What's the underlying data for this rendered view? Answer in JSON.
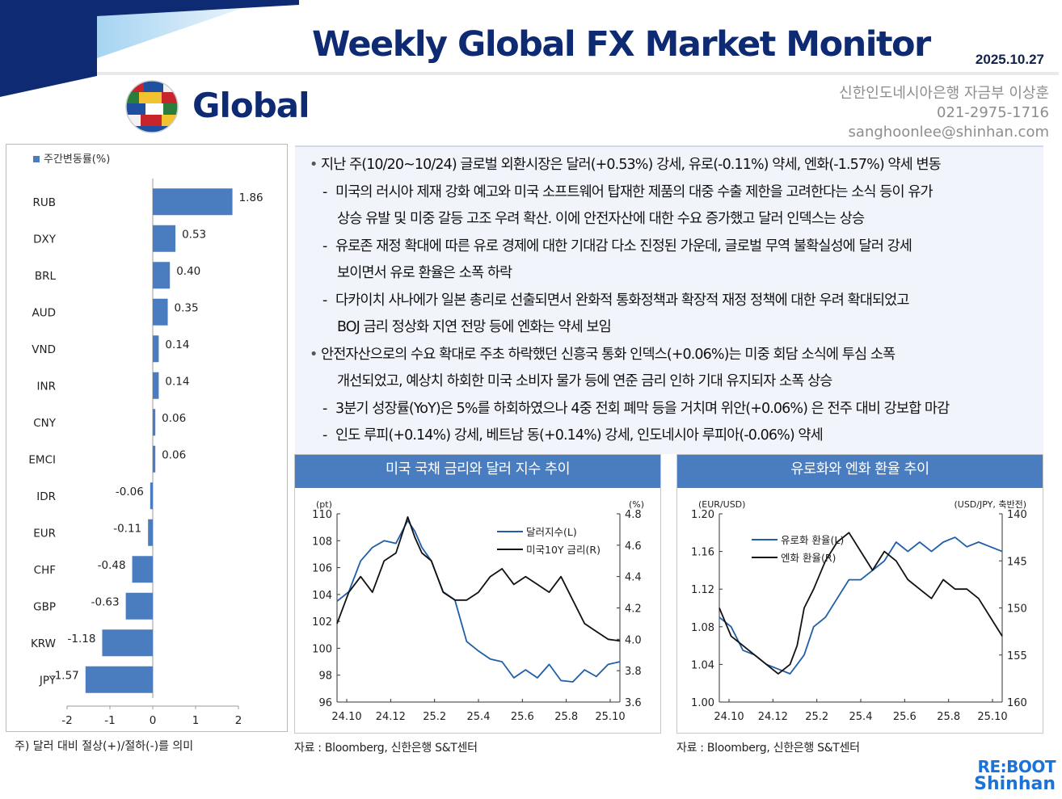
{
  "header": {
    "title": "Weekly Global FX Market Monitor",
    "date": "2025.10.27",
    "section": "Global"
  },
  "author": {
    "dept": "신한인도네시아은행 자금부 이상훈",
    "phone": "021-2975-1716",
    "email": "sanghoonlee@shinhan.com"
  },
  "summary": [
    {
      "kind": "bullet",
      "text": "지난 주(10/20~10/24) 글로벌 외환시장은 달러(+0.53%) 강세, 유로(-0.11%) 약세, 엔화(-1.57%) 약세 변동"
    },
    {
      "kind": "sub",
      "text": "미국의 러시아 제재 강화 예고와 미국 소프트웨어 탑재한 제품의 대중 수출 제한을 고려한다는 소식 등이 유가"
    },
    {
      "kind": "cont",
      "text": "상승 유발 및 미중 갈등 고조 우려 확산. 이에 안전자산에 대한 수요 증가했고 달러 인덱스는 상승"
    },
    {
      "kind": "sub",
      "text": "유로존 재정 확대에 따른 유로 경제에 대한 기대감 다소 진정된 가운데, 글로벌 무역 불확실성에 달러 강세"
    },
    {
      "kind": "cont",
      "text": "보이면서 유로 환율은 소폭 하락"
    },
    {
      "kind": "sub",
      "text": "다카이치 사나에가 일본 총리로 선출되면서 완화적 통화정책과 확장적 재정 정책에 대한 우려 확대되었고"
    },
    {
      "kind": "cont",
      "text": "BOJ 금리 정상화 지연 전망 등에 엔화는 약세 보임"
    },
    {
      "kind": "bullet",
      "text": "안전자산으로의 수요 확대로 주초 하락했던 신흥국 통화 인덱스(+0.06%)는 미중 회담 소식에 투심 소폭"
    },
    {
      "kind": "cont",
      "text": "개선되었고, 예상치 하회한 미국 소비자 물가 등에 연준 금리 인하 기대 유지되자 소폭 상승"
    },
    {
      "kind": "sub",
      "text": "3분기 성장률(YoY)은 5%를 하회하였으나 4중 전회 폐막 등을 거치며 위안(+0.06%) 은 전주 대비 강보합 마감"
    },
    {
      "kind": "sub",
      "text": "인도 루피(+0.14%) 강세, 베트남 동(+0.14%) 강세, 인도네시아 루피아(-0.06%) 약세"
    }
  ],
  "footnote": "주) 달러 대비 절상(+)/절하(-)를 의미",
  "charts": {
    "left_title": "미국 국채 금리와 달러 지수 추이",
    "right_title": "유로화와 엔화 환율 추이",
    "left_source": "자료 : Bloomberg, 신한은행 S&T센터",
    "right_source": "자료 : Bloomberg, 신한은행 S&T센터"
  },
  "logo": {
    "top": "RE:BOOT",
    "bottom": "Shinhan"
  },
  "chart_data": [
    {
      "type": "bar",
      "orientation": "horizontal",
      "legend": "주간변동률(%)",
      "categories": [
        "RUB",
        "DXY",
        "BRL",
        "AUD",
        "VND",
        "INR",
        "CNY",
        "EMCI",
        "IDR",
        "EUR",
        "CHF",
        "GBP",
        "KRW",
        "JPY"
      ],
      "values": [
        1.86,
        0.53,
        0.4,
        0.35,
        0.14,
        0.14,
        0.06,
        0.06,
        -0.06,
        -0.11,
        -0.48,
        -0.63,
        -1.18,
        -1.57
      ],
      "labels": [
        "1.86",
        "0.53",
        "0.40",
        "0.35",
        "0.14",
        "0.14",
        "0.06",
        "0.06",
        "-0.06",
        "-0.11",
        "-0.48",
        "-0.63",
        "-1.18",
        "-1.57"
      ],
      "xlim": [
        -2,
        2
      ],
      "xticks": [
        "-2",
        "-1",
        "0",
        "1",
        "2"
      ],
      "color": "#4a7dc0"
    },
    {
      "type": "line",
      "left_unit": "(pt)",
      "right_unit": "(%)",
      "ylim": [
        96,
        110
      ],
      "y2lim": [
        3.6,
        4.8
      ],
      "yticks": [
        "96",
        "98",
        "100",
        "102",
        "104",
        "106",
        "108",
        "110"
      ],
      "y2ticks": [
        "3.6",
        "3.8",
        "4.0",
        "4.2",
        "4.4",
        "4.6",
        "4.8"
      ],
      "xticks": [
        "24.10",
        "24.12",
        "25.2",
        "25.4",
        "25.6",
        "25.8",
        "25.10"
      ],
      "xrange": [
        0,
        12
      ],
      "series": [
        {
          "name": "달러지수(L)",
          "color": "#1f5fa8",
          "axis": "left",
          "x": [
            0,
            0.5,
            1,
            1.5,
            2,
            2.5,
            3,
            3.3,
            3.6,
            4,
            4.5,
            5,
            5.5,
            6,
            6.5,
            7,
            7.5,
            8,
            8.5,
            9,
            9.5,
            10,
            10.5,
            11,
            11.5,
            12
          ],
          "y": [
            103.5,
            104.2,
            106.5,
            107.5,
            108.0,
            107.8,
            109.5,
            108.7,
            107.5,
            106.5,
            104.2,
            103.6,
            100.5,
            99.8,
            99.2,
            99.0,
            97.8,
            98.4,
            97.8,
            98.8,
            97.6,
            97.5,
            98.4,
            97.9,
            98.8,
            99.0
          ]
        },
        {
          "name": "미국10Y 금리(R)",
          "color": "#111111",
          "axis": "right",
          "x": [
            0,
            0.5,
            1,
            1.5,
            2,
            2.5,
            3,
            3.3,
            3.6,
            4,
            4.5,
            5,
            5.5,
            6,
            6.5,
            7,
            7.5,
            8,
            8.5,
            9,
            9.5,
            10,
            10.5,
            11,
            11.5,
            12
          ],
          "y": [
            4.1,
            4.3,
            4.4,
            4.3,
            4.5,
            4.55,
            4.78,
            4.65,
            4.55,
            4.5,
            4.3,
            4.25,
            4.25,
            4.3,
            4.4,
            4.45,
            4.35,
            4.4,
            4.35,
            4.3,
            4.4,
            4.25,
            4.1,
            4.05,
            4.0,
            3.99
          ]
        }
      ]
    },
    {
      "type": "line",
      "left_unit": "(EUR/USD)",
      "right_unit": "(USD/JPY, 축반전)",
      "ylim": [
        1.0,
        1.2
      ],
      "y2lim": [
        160,
        140
      ],
      "y2_inverted": true,
      "yticks": [
        "1.00",
        "1.04",
        "1.08",
        "1.12",
        "1.16",
        "1.20"
      ],
      "y2ticks": [
        "160",
        "155",
        "150",
        "145",
        "140"
      ],
      "xticks": [
        "24.10",
        "24.12",
        "25.2",
        "25.4",
        "25.6",
        "25.8",
        "25.10"
      ],
      "xrange": [
        0,
        12
      ],
      "series": [
        {
          "name": "유로화 환율(L)",
          "color": "#1f5fa8",
          "axis": "left",
          "x": [
            0,
            0.5,
            1,
            1.5,
            2,
            2.5,
            3,
            3.3,
            3.6,
            4,
            4.5,
            5,
            5.5,
            6,
            6.5,
            7,
            7.5,
            8,
            8.5,
            9,
            9.5,
            10,
            10.5,
            11,
            11.5,
            12
          ],
          "y": [
            1.09,
            1.08,
            1.055,
            1.05,
            1.04,
            1.035,
            1.03,
            1.04,
            1.05,
            1.08,
            1.09,
            1.11,
            1.13,
            1.13,
            1.14,
            1.15,
            1.17,
            1.16,
            1.17,
            1.16,
            1.17,
            1.175,
            1.165,
            1.17,
            1.165,
            1.16
          ]
        },
        {
          "name": "엔화 환율(R)",
          "color": "#111111",
          "axis": "right",
          "x": [
            0,
            0.5,
            1,
            1.5,
            2,
            2.5,
            3,
            3.3,
            3.6,
            4,
            4.5,
            5,
            5.5,
            6,
            6.5,
            7,
            7.5,
            8,
            8.5,
            9,
            9.5,
            10,
            10.5,
            11,
            11.5,
            12
          ],
          "y": [
            150,
            153,
            154,
            155,
            156,
            157,
            156,
            154,
            150,
            148,
            145,
            143,
            142,
            144,
            146,
            144,
            145,
            147,
            148,
            149,
            147,
            148,
            148,
            149,
            151,
            153
          ]
        }
      ]
    }
  ]
}
